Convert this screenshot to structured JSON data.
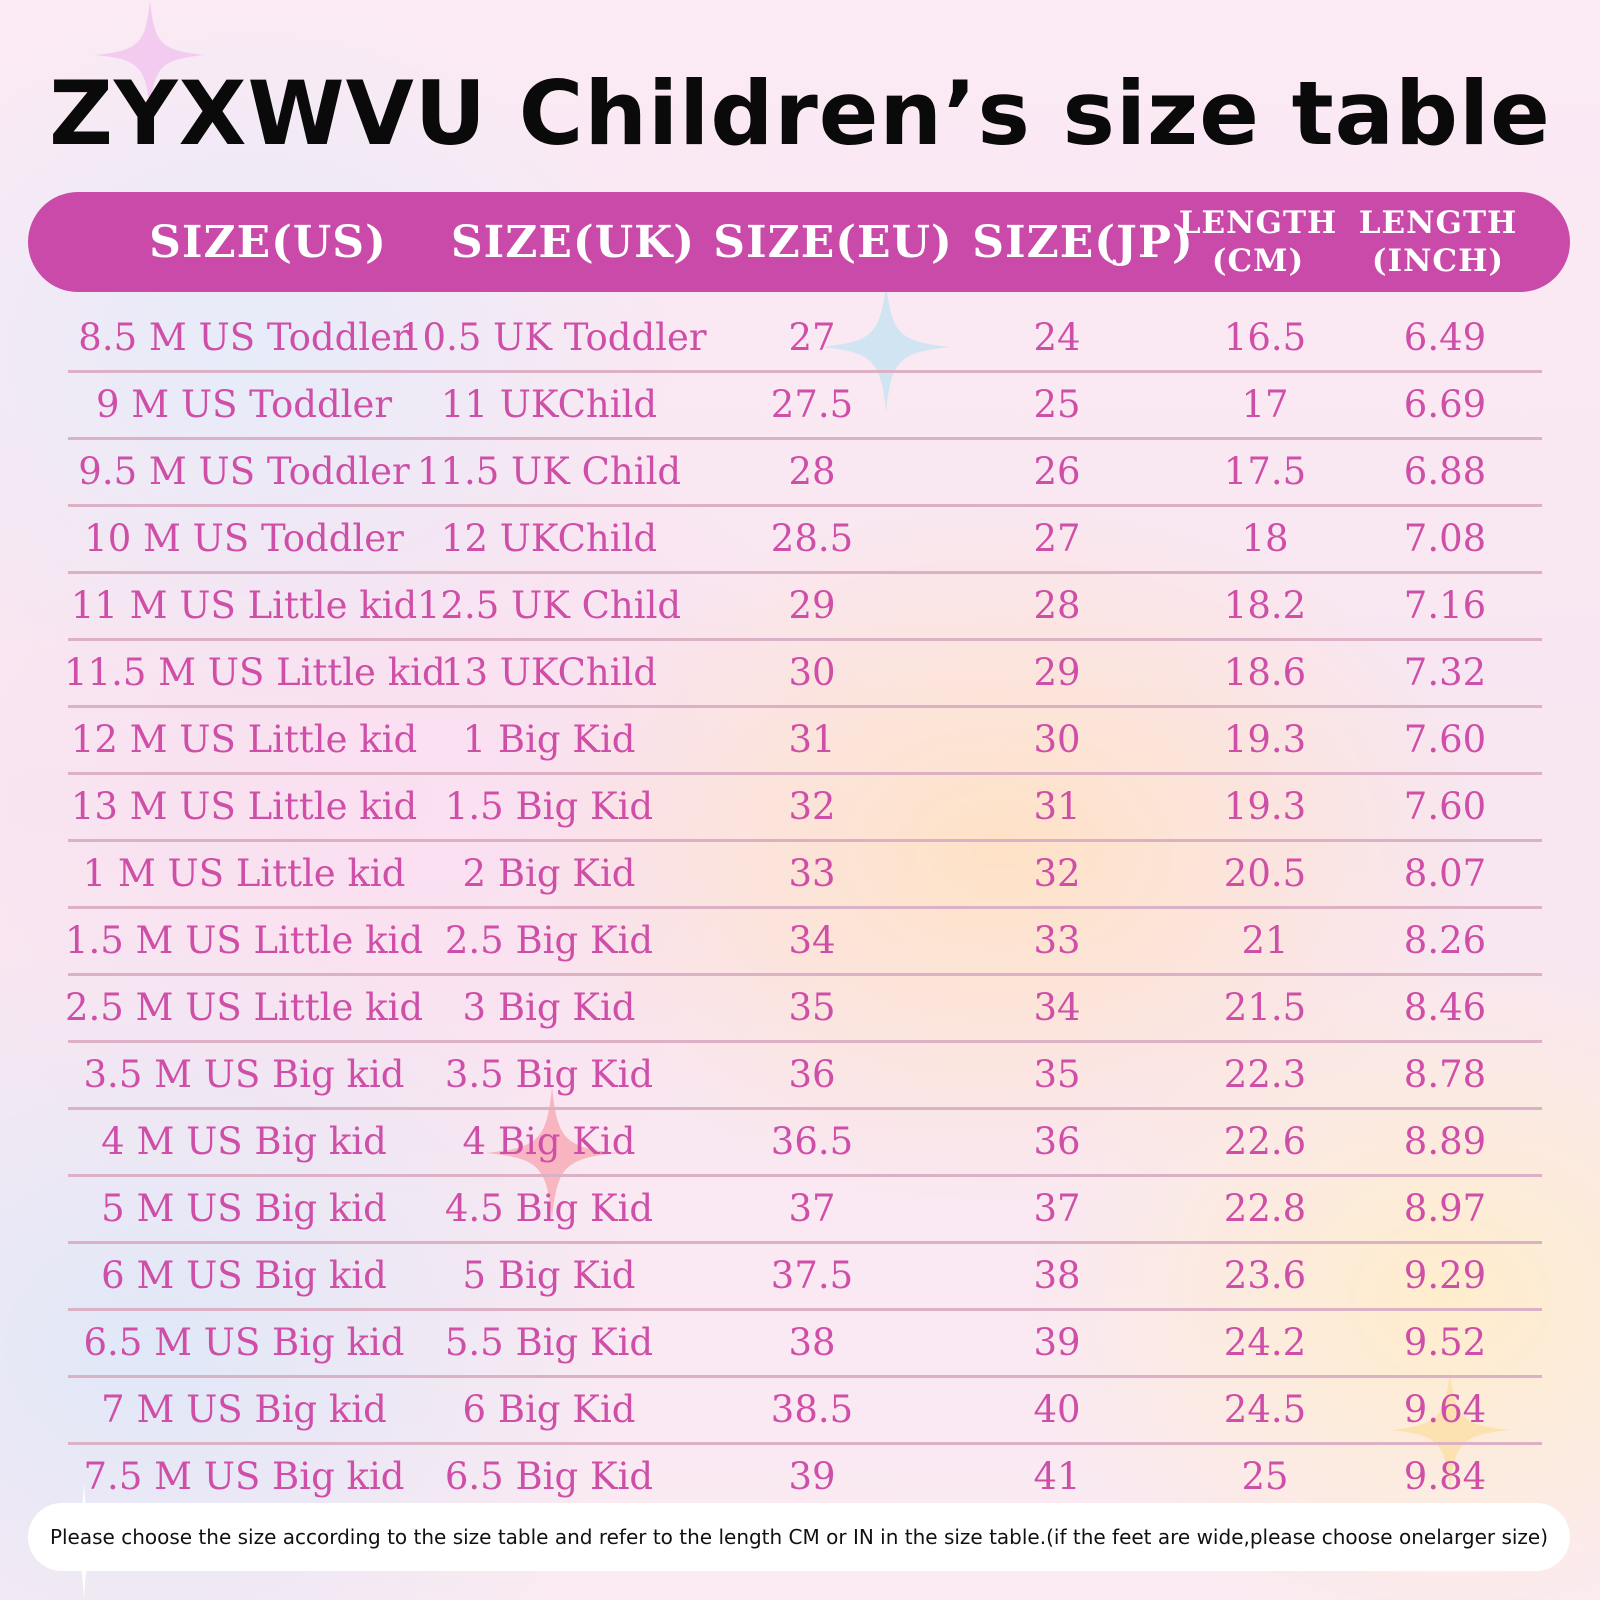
{
  "title": "ZYXWVU Children’s size table",
  "columns": [
    {
      "lines": [
        "SIZE(US)"
      ]
    },
    {
      "lines": [
        "SIZE(UK)"
      ]
    },
    {
      "lines": [
        "SIZE(EU)"
      ]
    },
    {
      "lines": [
        "SIZE(JP)"
      ]
    },
    {
      "lines": [
        "LENGTH",
        "(CM)"
      ]
    },
    {
      "lines": [
        "LENGTH",
        "(INCH)"
      ]
    }
  ],
  "rows": [
    [
      "8.5 M US Toddler",
      "10.5 UK Toddler",
      "27",
      "24",
      "16.5",
      "6.49"
    ],
    [
      "9 M US Toddler",
      "11 UKChild",
      "27.5",
      "25",
      "17",
      "6.69"
    ],
    [
      "9.5 M US Toddler",
      "11.5 UK Child",
      "28",
      "26",
      "17.5",
      "6.88"
    ],
    [
      "10 M US Toddler",
      "12 UKChild",
      "28.5",
      "27",
      "18",
      "7.08"
    ],
    [
      "11 M US Little kid",
      "12.5 UK Child",
      "29",
      "28",
      "18.2",
      "7.16"
    ],
    [
      "11.5 M US Little kid",
      "13 UKChild",
      "30",
      "29",
      "18.6",
      "7.32"
    ],
    [
      "12 M US Little kid",
      "1 Big Kid",
      "31",
      "30",
      "19.3",
      "7.60"
    ],
    [
      "13 M US Little kid",
      "1.5 Big Kid",
      "32",
      "31",
      "19.3",
      "7.60"
    ],
    [
      "1 M US Little kid",
      "2 Big Kid",
      "33",
      "32",
      "20.5",
      "8.07"
    ],
    [
      "1.5 M US Little kid",
      "2.5 Big Kid",
      "34",
      "33",
      "21",
      "8.26"
    ],
    [
      "2.5 M US Little kid",
      "3 Big Kid",
      "35",
      "34",
      "21.5",
      "8.46"
    ],
    [
      "3.5 M US Big kid",
      "3.5 Big Kid",
      "36",
      "35",
      "22.3",
      "8.78"
    ],
    [
      "4 M US Big kid",
      "4 Big Kid",
      "36.5",
      "36",
      "22.6",
      "8.89"
    ],
    [
      "5 M US Big kid",
      "4.5 Big Kid",
      "37",
      "37",
      "22.8",
      "8.97"
    ],
    [
      "6 M US Big kid",
      "5 Big Kid",
      "37.5",
      "38",
      "23.6",
      "9.29"
    ],
    [
      "6.5 M US Big kid",
      "5.5 Big Kid",
      "38",
      "39",
      "24.2",
      "9.52"
    ],
    [
      "7 M US Big kid",
      "6 Big Kid",
      "38.5",
      "40",
      "24.5",
      "9.64"
    ],
    [
      "7.5 M US Big kid",
      "6.5 Big Kid",
      "39",
      "41",
      "25",
      "9.84"
    ]
  ],
  "note": "Please choose the size according to the size table and refer to the length CM or IN in the size table.(if the feet are wide,please choose onelarger size)",
  "colors": {
    "header_bg": "#c94aa9",
    "header_text": "#ffffff",
    "cell_text": "#cf4fa8",
    "divider": "#dcb0c5",
    "title": "#0a0a0a"
  },
  "decor_icons": [
    "sparkle-icon"
  ]
}
